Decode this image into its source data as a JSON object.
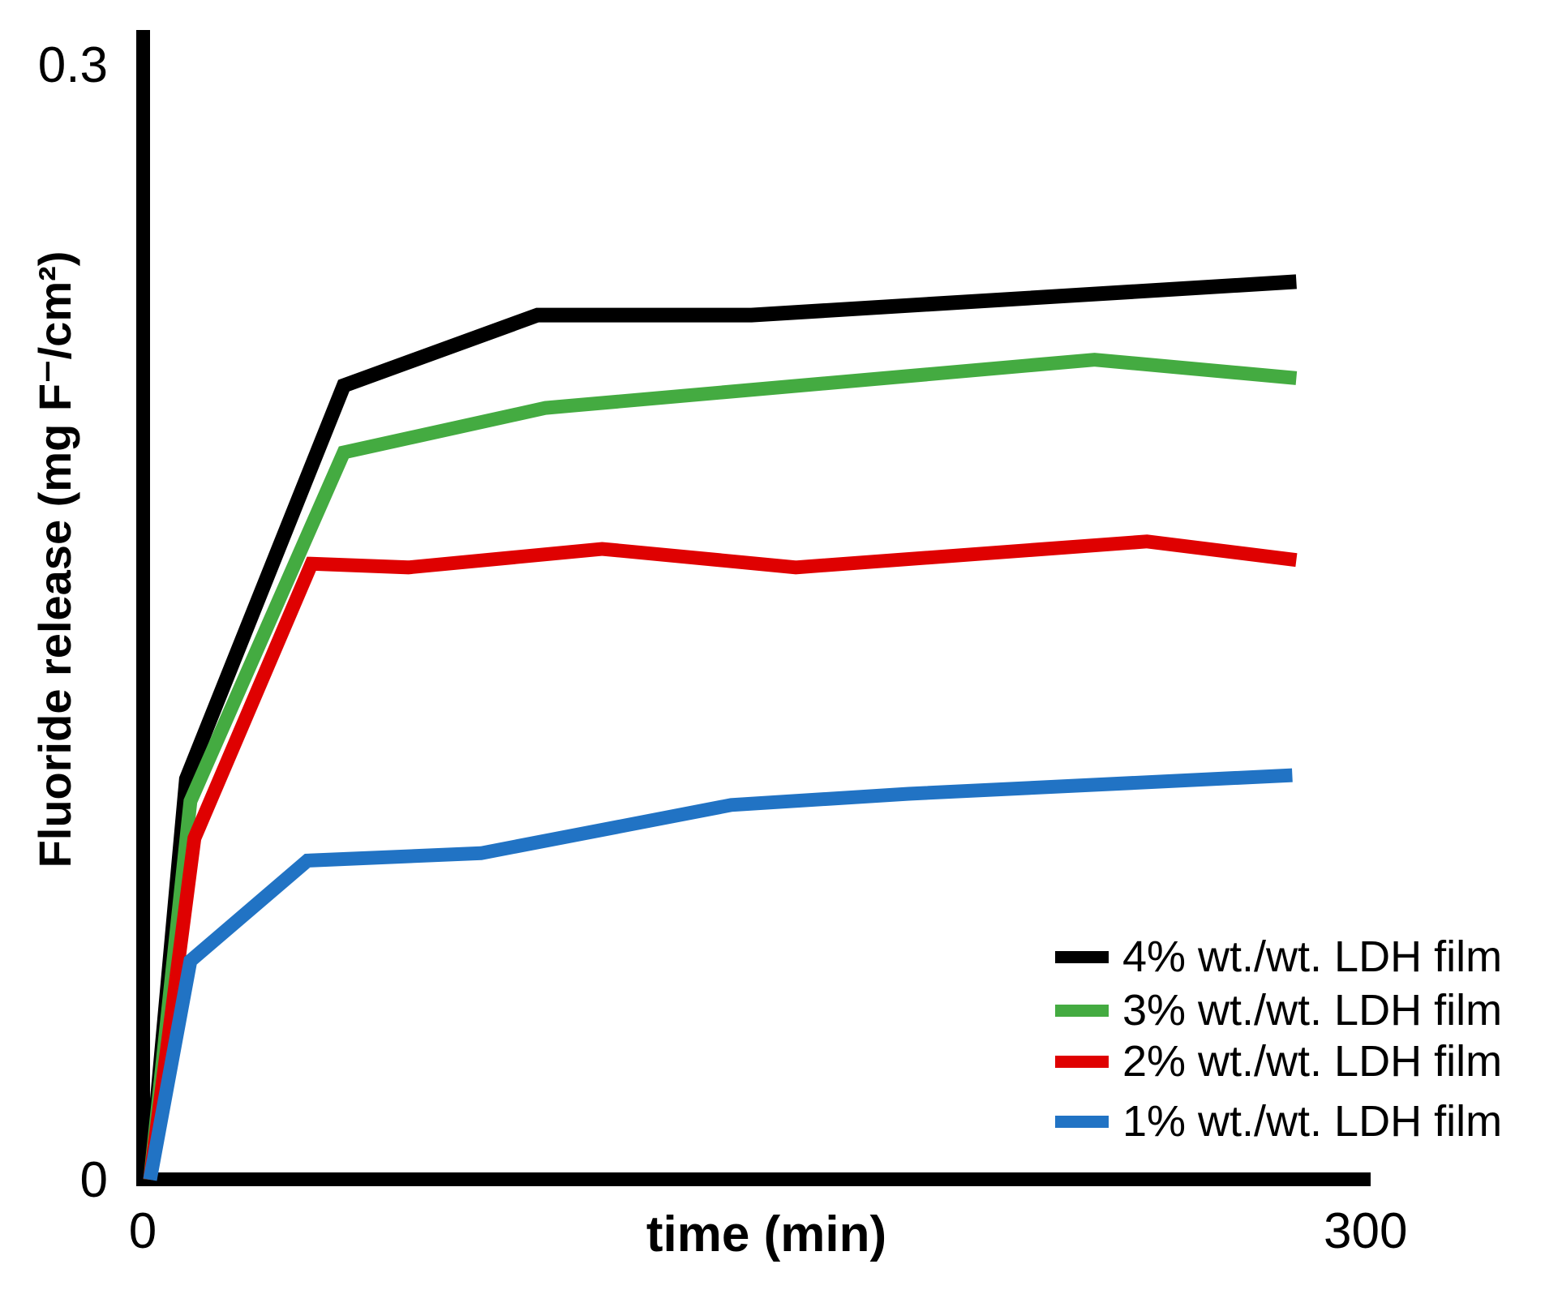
{
  "chart_data": {
    "type": "line",
    "title": "",
    "xlabel": "time (min)",
    "ylabel": "Fluoride release (mg F⁻/cm²)",
    "xlim": [
      0,
      300
    ],
    "ylim": [
      0,
      0.3
    ],
    "grid": false,
    "legend_position": "lower-right",
    "x_ticks": [
      {
        "value": 0,
        "label": "0"
      },
      {
        "value": 300,
        "label": "300"
      }
    ],
    "y_ticks": [
      {
        "value": 0,
        "label": "0"
      },
      {
        "value": 0.3,
        "label": "0.3"
      }
    ],
    "series": [
      {
        "id": "4pct-ldh-film",
        "name": "4% wt./wt. LDH film",
        "color": "#000000",
        "stroke_width": 18,
        "points": [
          [
            0,
            0
          ],
          [
            9,
            0.108
          ],
          [
            48,
            0.214
          ],
          [
            96,
            0.233
          ],
          [
            149,
            0.233
          ],
          [
            284,
            0.242
          ]
        ]
      },
      {
        "id": "3pct-ldh-film",
        "name": "3% wt./wt. LDH film",
        "color": "#44AB41",
        "stroke_width": 17,
        "points": [
          [
            0,
            0
          ],
          [
            10,
            0.102
          ],
          [
            48,
            0.196
          ],
          [
            98,
            0.208
          ],
          [
            234,
            0.221
          ],
          [
            284,
            0.216
          ]
        ]
      },
      {
        "id": "2pct-ldh-film",
        "name": "2% wt./wt. LDH film",
        "color": "#DF0101",
        "stroke_width": 17,
        "points": [
          [
            0,
            0
          ],
          [
            11,
            0.092
          ],
          [
            40,
            0.166
          ],
          [
            64,
            0.165
          ],
          [
            112,
            0.17
          ],
          [
            160,
            0.165
          ],
          [
            247,
            0.172
          ],
          [
            284,
            0.167
          ]
        ]
      },
      {
        "id": "1pct-ldh-film",
        "name": "1% wt./wt. LDH film",
        "color": "#2173C4",
        "stroke_width": 17,
        "points": [
          [
            0,
            0
          ],
          [
            10,
            0.059
          ],
          [
            39,
            0.086
          ],
          [
            82,
            0.088
          ],
          [
            144,
            0.101
          ],
          [
            188,
            0.104
          ],
          [
            283,
            0.109
          ]
        ]
      }
    ]
  }
}
